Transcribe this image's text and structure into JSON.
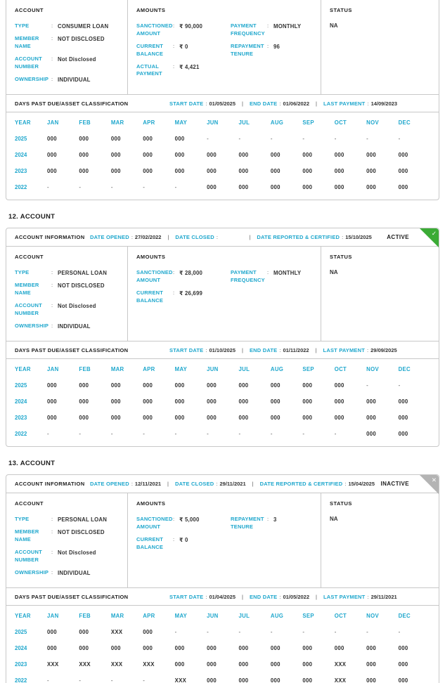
{
  "colors": {
    "accent": "#1fa7cd",
    "active_green": "#3bab36",
    "inactive_gray": "#b4b4b4",
    "border": "#c8c8c8",
    "text": "#1c1c1c"
  },
  "table": {
    "year_label": "YEAR",
    "months": [
      "JAN",
      "FEB",
      "MAR",
      "APR",
      "MAY",
      "JUN",
      "JUL",
      "AUG",
      "SEP",
      "OCT",
      "NOV",
      "DEC"
    ]
  },
  "sections": [
    {
      "account": {
        "header": "ACCOUNT",
        "fields": [
          {
            "label": "TYPE",
            "value": "CONSUMER LOAN"
          },
          {
            "label": "MEMBER NAME",
            "value": "NOT DISCLOSED"
          },
          {
            "label": "ACCOUNT NUMBER",
            "value": "Not Disclosed"
          },
          {
            "label": "OWNERSHIP",
            "value": "INDIVIDUAL"
          }
        ]
      },
      "amounts": {
        "header": "AMOUNTS",
        "left": [
          {
            "label": "SANCTIONED AMOUNT",
            "value": "₹ 90,000"
          },
          {
            "label": "CURRENT BALANCE",
            "value": "₹ 0"
          },
          {
            "label": "ACTUAL PAYMENT",
            "value": "₹ 4,421"
          }
        ],
        "right": [
          {
            "label": "PAYMENT FREQUENCY",
            "value": "MONTHLY"
          },
          {
            "label": "REPAYMENT TENURE",
            "value": "96"
          }
        ]
      },
      "status": {
        "header": "STATUS",
        "value": "NA"
      },
      "dpd": {
        "title": "DAYS PAST DUE/ASSET CLASSIFICATION",
        "start_label": "START DATE",
        "start": "01/05/2025",
        "end_label": "END DATE",
        "end": "01/06/2022",
        "last_label": "LAST PAYMENT",
        "last": "14/09/2023",
        "rows": [
          {
            "year": "2025",
            "cells": [
              "000",
              "000",
              "000",
              "000",
              "000",
              "-",
              "-",
              "-",
              "-",
              "-",
              "-",
              "-"
            ]
          },
          {
            "year": "2024",
            "cells": [
              "000",
              "000",
              "000",
              "000",
              "000",
              "000",
              "000",
              "000",
              "000",
              "000",
              "000",
              "000"
            ]
          },
          {
            "year": "2023",
            "cells": [
              "000",
              "000",
              "000",
              "000",
              "000",
              "000",
              "000",
              "000",
              "000",
              "000",
              "000",
              "000"
            ]
          },
          {
            "year": "2022",
            "cells": [
              "-",
              "-",
              "-",
              "-",
              "-",
              "000",
              "000",
              "000",
              "000",
              "000",
              "000",
              "000"
            ]
          }
        ]
      }
    },
    {
      "title": "12. ACCOUNT",
      "info": {
        "title": "ACCOUNT INFORMATION",
        "opened_label": "DATE OPENED",
        "opened": "27/02/2022",
        "closed_label": "DATE CLOSED",
        "closed": "",
        "reported_label": "DATE REPORTED & CERTIFIED",
        "reported": "15/10/2025",
        "status": "ACTIVE",
        "mark": "✓"
      },
      "account": {
        "header": "ACCOUNT",
        "fields": [
          {
            "label": "TYPE",
            "value": "PERSONAL LOAN"
          },
          {
            "label": "MEMBER NAME",
            "value": "NOT DISCLOSED"
          },
          {
            "label": "ACCOUNT NUMBER",
            "value": "Not Disclosed"
          },
          {
            "label": "OWNERSHIP",
            "value": "INDIVIDUAL"
          }
        ]
      },
      "amounts": {
        "header": "AMOUNTS",
        "left": [
          {
            "label": "SANCTIONED AMOUNT",
            "value": "₹ 28,000"
          },
          {
            "label": "CURRENT BALANCE",
            "value": "₹ 26,699"
          }
        ],
        "right": [
          {
            "label": "PAYMENT FREQUENCY",
            "value": "MONTHLY"
          }
        ]
      },
      "status": {
        "header": "STATUS",
        "value": "NA"
      },
      "dpd": {
        "title": "DAYS PAST DUE/ASSET CLASSIFICATION",
        "start_label": "START DATE",
        "start": "01/10/2025",
        "end_label": "END DATE",
        "end": "01/11/2022",
        "last_label": "LAST PAYMENT",
        "last": "29/09/2025",
        "rows": [
          {
            "year": "2025",
            "cells": [
              "000",
              "000",
              "000",
              "000",
              "000",
              "000",
              "000",
              "000",
              "000",
              "000",
              "-",
              "-"
            ]
          },
          {
            "year": "2024",
            "cells": [
              "000",
              "000",
              "000",
              "000",
              "000",
              "000",
              "000",
              "000",
              "000",
              "000",
              "000",
              "000"
            ]
          },
          {
            "year": "2023",
            "cells": [
              "000",
              "000",
              "000",
              "000",
              "000",
              "000",
              "000",
              "000",
              "000",
              "000",
              "000",
              "000"
            ]
          },
          {
            "year": "2022",
            "cells": [
              "-",
              "-",
              "-",
              "-",
              "-",
              "-",
              "-",
              "-",
              "-",
              "-",
              "000",
              "000"
            ]
          }
        ]
      }
    },
    {
      "title": "13. ACCOUNT",
      "info": {
        "title": "ACCOUNT INFORMATION",
        "opened_label": "DATE OPENED",
        "opened": "12/11/2021",
        "closed_label": "DATE CLOSED",
        "closed": "29/11/2021",
        "reported_label": "DATE REPORTED & CERTIFIED",
        "reported": "15/04/2025",
        "status": "INACTIVE",
        "mark": "✕"
      },
      "account": {
        "header": "ACCOUNT",
        "fields": [
          {
            "label": "TYPE",
            "value": "PERSONAL LOAN"
          },
          {
            "label": "MEMBER NAME",
            "value": "NOT DISCLOSED"
          },
          {
            "label": "ACCOUNT NUMBER",
            "value": "Not Disclosed"
          },
          {
            "label": "OWNERSHIP",
            "value": "INDIVIDUAL"
          }
        ]
      },
      "amounts": {
        "header": "AMOUNTS",
        "left": [
          {
            "label": "SANCTIONED AMOUNT",
            "value": "₹ 5,000"
          },
          {
            "label": "CURRENT BALANCE",
            "value": "₹ 0"
          }
        ],
        "right": [
          {
            "label": "REPAYMENT TENURE",
            "value": "3"
          }
        ]
      },
      "status": {
        "header": "STATUS",
        "value": "NA"
      },
      "dpd": {
        "title": "DAYS PAST DUE/ASSET CLASSIFICATION",
        "start_label": "START DATE",
        "start": "01/04/2025",
        "end_label": "END DATE",
        "end": "01/05/2022",
        "last_label": "LAST PAYMENT",
        "last": "29/11/2021",
        "rows": [
          {
            "year": "2025",
            "cells": [
              "000",
              "000",
              "XXX",
              "000",
              "-",
              "-",
              "-",
              "-",
              "-",
              "-",
              "-",
              "-"
            ]
          },
          {
            "year": "2024",
            "cells": [
              "000",
              "000",
              "000",
              "000",
              "000",
              "000",
              "000",
              "000",
              "000",
              "000",
              "000",
              "000"
            ]
          },
          {
            "year": "2023",
            "cells": [
              "XXX",
              "XXX",
              "XXX",
              "XXX",
              "000",
              "000",
              "000",
              "000",
              "000",
              "XXX",
              "000",
              "000"
            ]
          },
          {
            "year": "2022",
            "cells": [
              "-",
              "-",
              "-",
              "-",
              "XXX",
              "000",
              "000",
              "000",
              "000",
              "XXX",
              "000",
              "000"
            ]
          }
        ]
      }
    }
  ]
}
